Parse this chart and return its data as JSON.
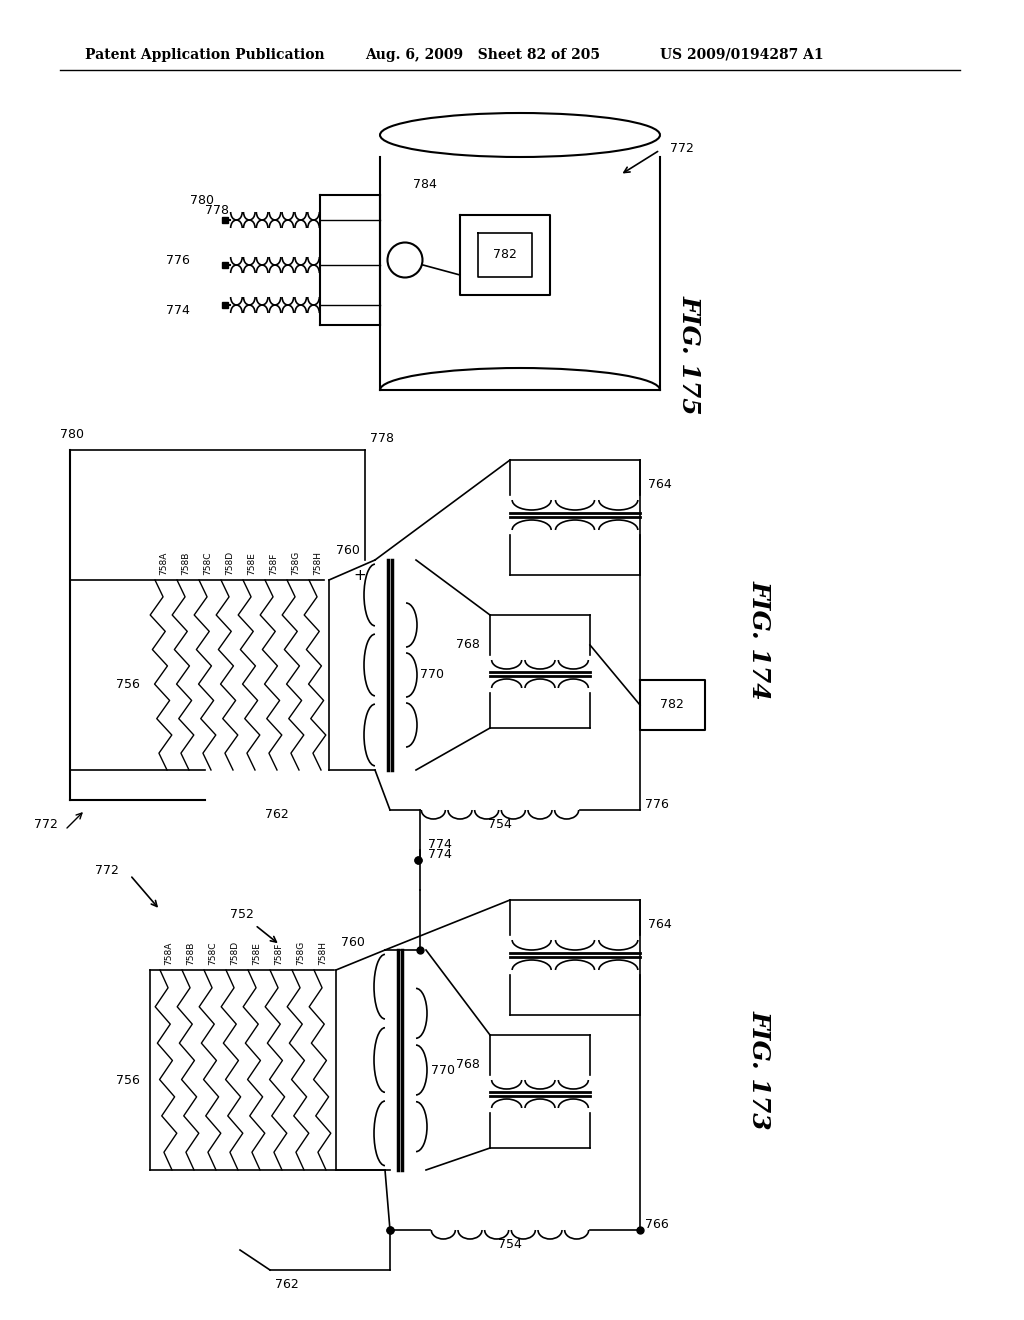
{
  "page_header_left": "Patent Application Publication",
  "page_header_center": "Aug. 6, 2009   Sheet 82 of 205",
  "page_header_right": "US 2009/0194287 A1",
  "fig175_label": "FIG. 175",
  "fig174_label": "FIG. 174",
  "fig173_label": "FIG. 173",
  "background_color": "#ffffff",
  "line_color": "#000000",
  "header_font_size": 10,
  "fig_label_font_size": 18,
  "annotation_font_size": 9
}
